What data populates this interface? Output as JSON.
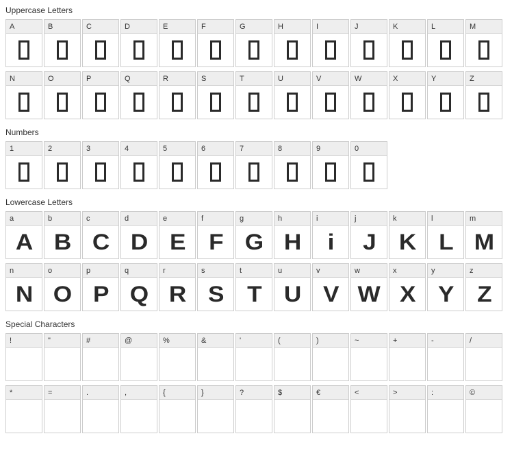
{
  "sections": [
    {
      "title": "Uppercase Letters",
      "perRow": 13,
      "cells": [
        {
          "label": "A",
          "glyphType": "missing"
        },
        {
          "label": "B",
          "glyphType": "missing"
        },
        {
          "label": "C",
          "glyphType": "missing"
        },
        {
          "label": "D",
          "glyphType": "missing"
        },
        {
          "label": "E",
          "glyphType": "missing"
        },
        {
          "label": "F",
          "glyphType": "missing"
        },
        {
          "label": "G",
          "glyphType": "missing"
        },
        {
          "label": "H",
          "glyphType": "missing"
        },
        {
          "label": "I",
          "glyphType": "missing"
        },
        {
          "label": "J",
          "glyphType": "missing"
        },
        {
          "label": "K",
          "glyphType": "missing"
        },
        {
          "label": "L",
          "glyphType": "missing"
        },
        {
          "label": "M",
          "glyphType": "missing"
        },
        {
          "label": "N",
          "glyphType": "missing"
        },
        {
          "label": "O",
          "glyphType": "missing"
        },
        {
          "label": "P",
          "glyphType": "missing"
        },
        {
          "label": "Q",
          "glyphType": "missing"
        },
        {
          "label": "R",
          "glyphType": "missing"
        },
        {
          "label": "S",
          "glyphType": "missing"
        },
        {
          "label": "T",
          "glyphType": "missing"
        },
        {
          "label": "U",
          "glyphType": "missing"
        },
        {
          "label": "V",
          "glyphType": "missing"
        },
        {
          "label": "W",
          "glyphType": "missing"
        },
        {
          "label": "X",
          "glyphType": "missing"
        },
        {
          "label": "Y",
          "glyphType": "missing"
        },
        {
          "label": "Z",
          "glyphType": "missing"
        }
      ]
    },
    {
      "title": "Numbers",
      "perRow": 13,
      "cells": [
        {
          "label": "1",
          "glyphType": "missing"
        },
        {
          "label": "2",
          "glyphType": "missing"
        },
        {
          "label": "3",
          "glyphType": "missing"
        },
        {
          "label": "4",
          "glyphType": "missing"
        },
        {
          "label": "5",
          "glyphType": "missing"
        },
        {
          "label": "6",
          "glyphType": "missing"
        },
        {
          "label": "7",
          "glyphType": "missing"
        },
        {
          "label": "8",
          "glyphType": "missing"
        },
        {
          "label": "9",
          "glyphType": "missing"
        },
        {
          "label": "0",
          "glyphType": "missing"
        }
      ]
    },
    {
      "title": "Lowercase Letters",
      "perRow": 13,
      "cells": [
        {
          "label": "a",
          "glyphType": "font",
          "glyph": "A"
        },
        {
          "label": "b",
          "glyphType": "font",
          "glyph": "B"
        },
        {
          "label": "c",
          "glyphType": "font",
          "glyph": "C"
        },
        {
          "label": "d",
          "glyphType": "font",
          "glyph": "D"
        },
        {
          "label": "e",
          "glyphType": "font",
          "glyph": "E"
        },
        {
          "label": "f",
          "glyphType": "font",
          "glyph": "F"
        },
        {
          "label": "g",
          "glyphType": "font",
          "glyph": "G"
        },
        {
          "label": "h",
          "glyphType": "font",
          "glyph": "H"
        },
        {
          "label": "i",
          "glyphType": "font",
          "glyph": "i"
        },
        {
          "label": "j",
          "glyphType": "font",
          "glyph": "J"
        },
        {
          "label": "k",
          "glyphType": "font",
          "glyph": "K"
        },
        {
          "label": "l",
          "glyphType": "font",
          "glyph": "L"
        },
        {
          "label": "m",
          "glyphType": "font",
          "glyph": "M"
        },
        {
          "label": "n",
          "glyphType": "font",
          "glyph": "N"
        },
        {
          "label": "o",
          "glyphType": "font",
          "glyph": "O"
        },
        {
          "label": "p",
          "glyphType": "font",
          "glyph": "P"
        },
        {
          "label": "q",
          "glyphType": "font",
          "glyph": "Q"
        },
        {
          "label": "r",
          "glyphType": "font",
          "glyph": "R"
        },
        {
          "label": "s",
          "glyphType": "font",
          "glyph": "S"
        },
        {
          "label": "t",
          "glyphType": "font",
          "glyph": "T"
        },
        {
          "label": "u",
          "glyphType": "font",
          "glyph": "U"
        },
        {
          "label": "v",
          "glyphType": "font",
          "glyph": "V"
        },
        {
          "label": "w",
          "glyphType": "font",
          "glyph": "W"
        },
        {
          "label": "x",
          "glyphType": "font",
          "glyph": "X"
        },
        {
          "label": "y",
          "glyphType": "font",
          "glyph": "Y"
        },
        {
          "label": "z",
          "glyphType": "font",
          "glyph": "Z"
        }
      ]
    },
    {
      "title": "Special Characters",
      "perRow": 13,
      "cells": [
        {
          "label": "!",
          "glyphType": "empty"
        },
        {
          "label": "\"",
          "glyphType": "empty"
        },
        {
          "label": "#",
          "glyphType": "empty"
        },
        {
          "label": "@",
          "glyphType": "empty"
        },
        {
          "label": "%",
          "glyphType": "empty"
        },
        {
          "label": "&",
          "glyphType": "empty"
        },
        {
          "label": "'",
          "glyphType": "empty"
        },
        {
          "label": "(",
          "glyphType": "empty"
        },
        {
          "label": ")",
          "glyphType": "empty"
        },
        {
          "label": "~",
          "glyphType": "empty"
        },
        {
          "label": "+",
          "glyphType": "empty"
        },
        {
          "label": "-",
          "glyphType": "empty"
        },
        {
          "label": "/",
          "glyphType": "empty"
        },
        {
          "label": "*",
          "glyphType": "empty"
        },
        {
          "label": "=",
          "glyphType": "empty"
        },
        {
          "label": ".",
          "glyphType": "empty"
        },
        {
          "label": ",",
          "glyphType": "empty"
        },
        {
          "label": "{",
          "glyphType": "empty"
        },
        {
          "label": "}",
          "glyphType": "empty"
        },
        {
          "label": "?",
          "glyphType": "empty"
        },
        {
          "label": "$",
          "glyphType": "empty"
        },
        {
          "label": "€",
          "glyphType": "empty"
        },
        {
          "label": "<",
          "glyphType": "empty"
        },
        {
          "label": ">",
          "glyphType": "empty"
        },
        {
          "label": ":",
          "glyphType": "empty"
        },
        {
          "label": "©",
          "glyphType": "empty"
        }
      ]
    }
  ],
  "colors": {
    "cellBorder": "#cccccc",
    "labelBg": "#eeeeee",
    "glyphColor": "#2a2a2a",
    "textColor": "#333333",
    "pageBg": "#ffffff"
  },
  "layout": {
    "cellWidth": 54,
    "glyphHeight": 48,
    "labelHeight": 20,
    "gap": 2
  }
}
